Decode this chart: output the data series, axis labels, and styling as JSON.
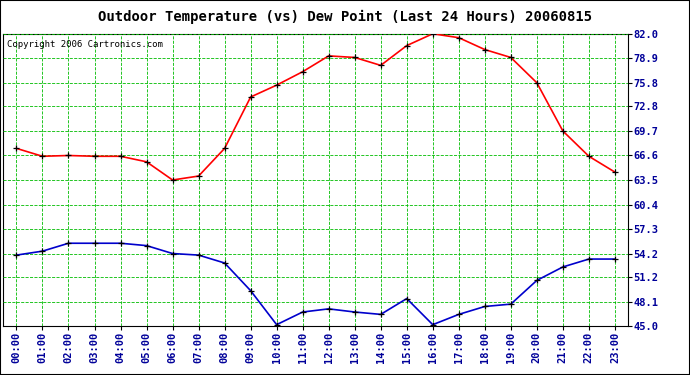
{
  "title": "Outdoor Temperature (vs) Dew Point (Last 24 Hours) 20060815",
  "copyright": "Copyright 2006 Cartronics.com",
  "x_labels": [
    "00:00",
    "01:00",
    "02:00",
    "03:00",
    "04:00",
    "05:00",
    "06:00",
    "07:00",
    "08:00",
    "09:00",
    "10:00",
    "11:00",
    "12:00",
    "13:00",
    "14:00",
    "15:00",
    "16:00",
    "17:00",
    "18:00",
    "19:00",
    "20:00",
    "21:00",
    "22:00",
    "23:00"
  ],
  "temp_data": [
    67.5,
    66.5,
    66.6,
    66.5,
    66.5,
    65.8,
    63.5,
    64.0,
    67.5,
    74.0,
    75.5,
    77.2,
    79.2,
    79.0,
    78.0,
    80.5,
    82.0,
    81.5,
    80.0,
    79.0,
    75.8,
    69.7,
    66.5,
    64.5
  ],
  "dew_data": [
    54.0,
    54.5,
    55.5,
    55.5,
    55.5,
    55.2,
    54.2,
    54.0,
    53.0,
    49.5,
    45.2,
    46.8,
    47.2,
    46.8,
    46.5,
    48.5,
    45.2,
    46.5,
    47.5,
    47.8,
    50.8,
    52.5,
    53.5,
    53.5
  ],
  "y_ticks": [
    45.0,
    48.1,
    51.2,
    54.2,
    57.3,
    60.4,
    63.5,
    66.6,
    69.7,
    72.8,
    75.8,
    78.9,
    82.0
  ],
  "y_min": 45.0,
  "y_max": 82.0,
  "temp_color": "#ff0000",
  "dew_color": "#0000cc",
  "marker_color": "#000000",
  "grid_color": "#00bb00",
  "bg_color": "#ffffff",
  "title_fontsize": 10,
  "copyright_fontsize": 6.5,
  "tick_fontsize": 7.5,
  "label_color": "#000099"
}
